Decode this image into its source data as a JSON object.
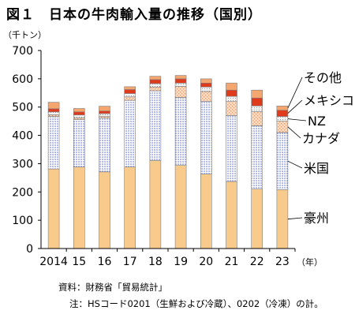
{
  "title": "図１　日本の牛肉輸入量の推移（国別）",
  "unit_label": "（千トン）",
  "source": "資料：財務省「貿易統計」",
  "note": "注：HSコード0201（生鮮および冷蔵）、0202（冷凍）の計。",
  "colors": {
    "australia": "#f8cb8d",
    "us_dots": "#4d5fd0",
    "canada": "#f8ddc8",
    "nz": "#e9e9e9",
    "mexico": "#e03a1c",
    "other": "#f4a66e",
    "outline": "#7f7f7f"
  },
  "chart_data": {
    "type": "bar",
    "stacked": true,
    "categories": [
      "2014",
      "15",
      "16",
      "17",
      "18",
      "19",
      "20",
      "21",
      "22",
      "23"
    ],
    "x_unit": "（年）",
    "ylim": [
      0,
      700
    ],
    "yticks": [
      "0",
      "100",
      "200",
      "300",
      "400",
      "500",
      "600",
      "700"
    ],
    "grid": false,
    "series": [
      {
        "name": "豪州",
        "values": [
          281,
          288,
          271,
          288,
          311,
          294,
          263,
          237,
          210,
          208
        ]
      },
      {
        "name": "米国",
        "values": [
          186,
          168,
          190,
          236,
          247,
          240,
          257,
          233,
          224,
          202
        ]
      },
      {
        "name": "カナダ",
        "values": [
          6,
          6,
          6,
          12,
          13,
          39,
          35,
          50,
          50,
          40
        ]
      },
      {
        "name": "NZ",
        "values": [
          10,
          10,
          10,
          12,
          12,
          12,
          16,
          18,
          20,
          17
        ]
      },
      {
        "name": "メキシコ",
        "values": [
          11,
          11,
          9,
          14,
          14,
          15,
          14,
          22,
          28,
          22
        ]
      },
      {
        "name": "その他",
        "values": [
          23,
          12,
          17,
          10,
          12,
          12,
          15,
          25,
          28,
          15
        ]
      }
    ]
  }
}
